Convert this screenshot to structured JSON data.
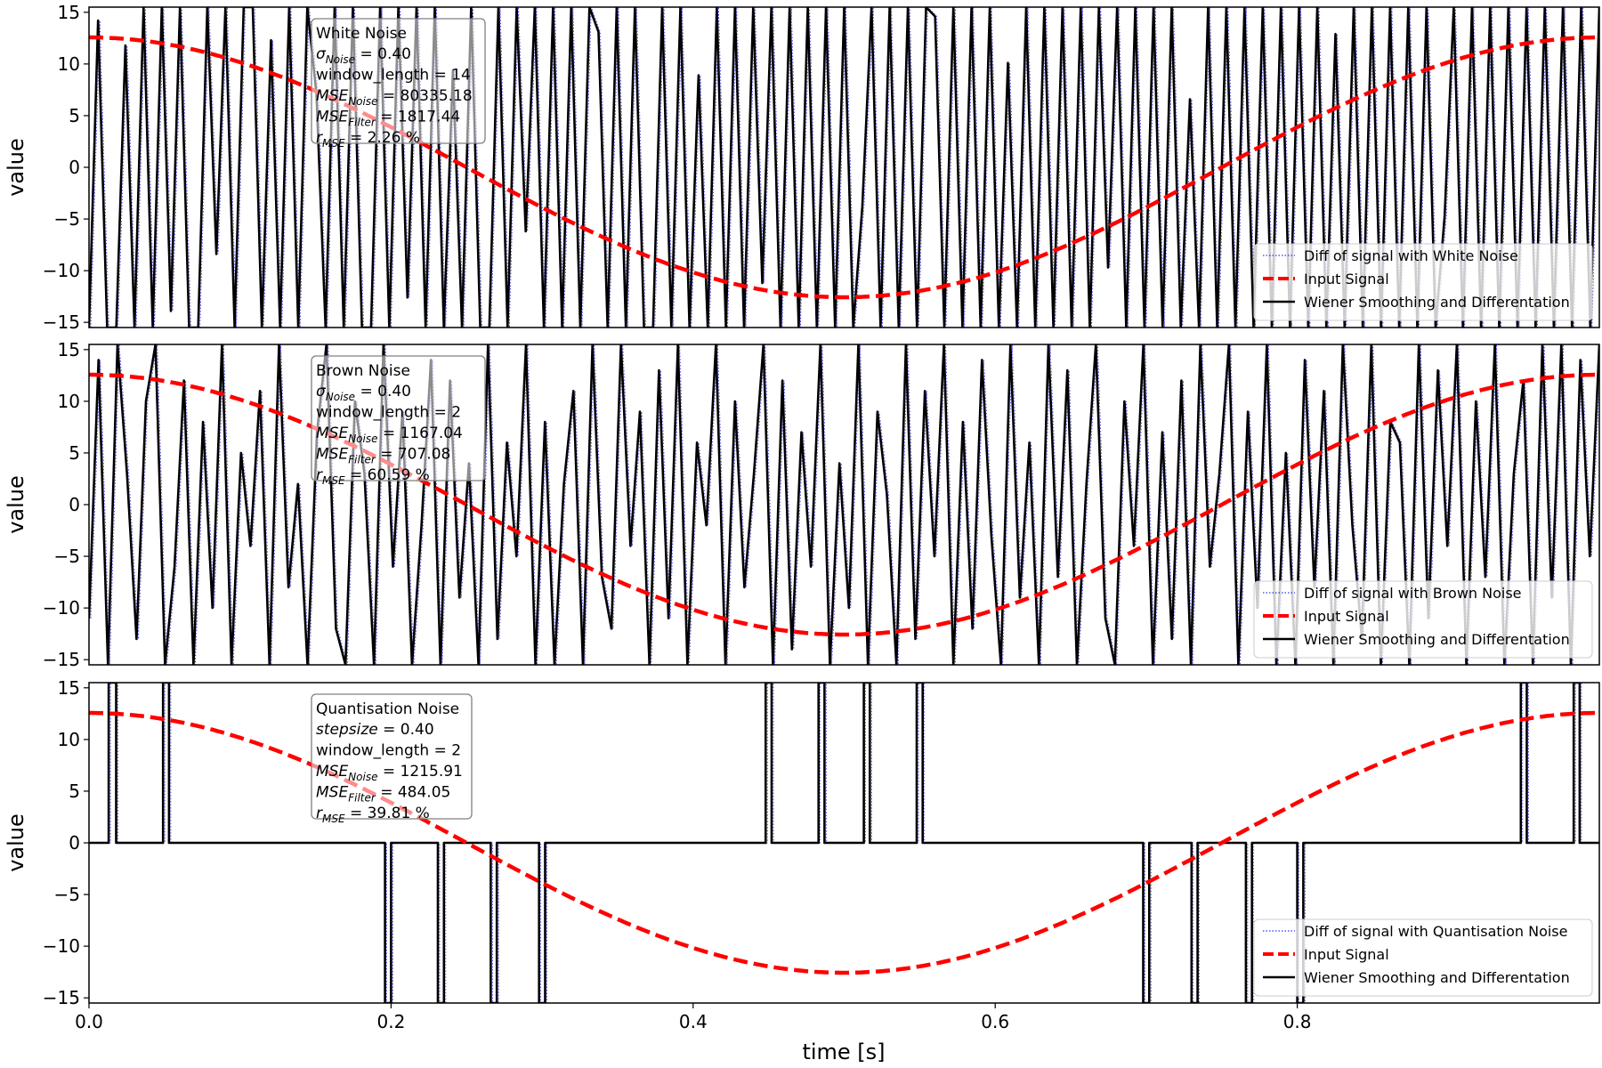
{
  "figure": {
    "xlabel": "time [s]",
    "x_ticks": [
      0.0,
      0.2,
      0.4,
      0.6,
      0.8
    ],
    "x_tick_labels": [
      "0.0",
      "0.2",
      "0.4",
      "0.6",
      "0.8"
    ],
    "xlim": [
      0.0,
      1.0
    ]
  },
  "chart_data": [
    {
      "type": "line",
      "ylabel": "value",
      "ylim": [
        -15.5,
        15.5
      ],
      "y_ticks": [
        -15,
        -10,
        -5,
        0,
        5,
        10,
        15
      ],
      "y_tick_labels": [
        "−15",
        "−10",
        "−5",
        "0",
        "5",
        "10",
        "15"
      ],
      "legend_placement": "lower-right",
      "info_box": {
        "title": "White Noise",
        "lines": [
          {
            "name": "σ",
            "sub": "Noise",
            "rest": " = 0.40"
          },
          {
            "name": "window_length",
            "sub": "",
            "rest": " = 14"
          },
          {
            "name": "MSE",
            "sub": "Noise",
            "rest": " = 80335.18"
          },
          {
            "name": "MSE",
            "sub": "Filter",
            "rest": " = 1817.44"
          },
          {
            "name": "r",
            "sub": "MSE",
            "rest": " = 2.26 %"
          }
        ]
      },
      "series": [
        {
          "name": "Diff of signal with White Noise",
          "color": "#0000ff",
          "style": "dotted"
        },
        {
          "name": "Input Signal",
          "color": "#ff0000",
          "style": "dashed",
          "function": "12.57*cos(2*pi*t)"
        },
        {
          "name": "Wiener Smoothing and Differentation",
          "color": "#000000",
          "style": "solid",
          "y": [
            -15.5,
            14.2,
            -15.5,
            -15.5,
            11.8,
            -15.5,
            15.5,
            -15.5,
            15.5,
            -13.9,
            15.5,
            -15.5,
            -15.5,
            15.5,
            -8.4,
            15.5,
            -15.5,
            15.5,
            15.5,
            -15.5,
            12.3,
            -15.5,
            15.5,
            -15.5,
            15.5,
            7.1,
            -15.5,
            15.5,
            -15.5,
            15.5,
            -15.5,
            -15.5,
            15.5,
            -15.5,
            15.5,
            -12.6,
            15.5,
            -15.5,
            15.5,
            -15.5,
            9.4,
            -15.5,
            15.5,
            -15.5,
            -15.5,
            15.5,
            -15.5,
            15.5,
            -6.2,
            15.5,
            -15.5,
            15.5,
            -15.5,
            15.5,
            -15.5,
            15.5,
            13.1,
            -15.5,
            15.5,
            -15.5,
            15.5,
            -15.5,
            -15.5,
            15.5,
            -15.5,
            15.5,
            -15.5,
            8.9,
            -15.5,
            15.5,
            -15.5,
            15.5,
            -15.5,
            15.5,
            -11.2,
            15.5,
            -15.5,
            15.5,
            -15.5,
            15.5,
            -15.5,
            15.5,
            -15.5,
            15.5,
            -15.5,
            -3.8,
            15.5,
            -15.5,
            15.5,
            -15.5,
            15.5,
            -15.5,
            15.5,
            14.6,
            -15.5,
            15.5,
            -15.5,
            15.5,
            -15.5,
            15.5,
            -15.5,
            10.1,
            -15.5,
            15.5,
            -15.5,
            15.5,
            -15.5,
            15.5,
            -15.5,
            15.5,
            -15.5,
            15.5,
            -9.7,
            15.5,
            -15.5,
            15.5,
            -15.5,
            15.5,
            -15.5,
            15.5,
            -15.5,
            6.6,
            -15.5,
            15.5,
            -15.5,
            15.5,
            -15.5,
            15.5,
            -15.5,
            15.5,
            -15.5,
            15.5,
            -15.5,
            15.5,
            -15.5,
            15.5,
            -15.5,
            12.9,
            -15.5,
            15.5,
            -15.5,
            15.5,
            -15.5,
            15.5,
            -15.5,
            15.5,
            -15.5,
            15.5,
            -15.5,
            -4.7,
            15.5,
            -15.5,
            15.5,
            -15.5,
            15.5,
            -15.5,
            15.5,
            -15.5,
            15.5,
            -15.5,
            15.5,
            -15.5,
            15.5,
            -15.5,
            15.5,
            -15.5,
            15.5
          ]
        }
      ]
    },
    {
      "type": "line",
      "ylabel": "value",
      "ylim": [
        -15.5,
        15.5
      ],
      "y_ticks": [
        -15,
        -10,
        -5,
        0,
        5,
        10,
        15
      ],
      "y_tick_labels": [
        "−15",
        "−10",
        "−5",
        "0",
        "5",
        "10",
        "15"
      ],
      "legend_placement": "lower-right",
      "info_box": {
        "title": "Brown Noise",
        "lines": [
          {
            "name": "σ",
            "sub": "Noise",
            "rest": " = 0.40"
          },
          {
            "name": "window_length",
            "sub": "",
            "rest": " = 2"
          },
          {
            "name": "MSE",
            "sub": "Noise",
            "rest": " = 1167.04"
          },
          {
            "name": "MSE",
            "sub": "Filter",
            "rest": " = 707.08"
          },
          {
            "name": "r",
            "sub": "MSE",
            "rest": " = 60.59 %"
          }
        ]
      },
      "series": [
        {
          "name": "Diff of signal with Brown Noise",
          "color": "#0000ff",
          "style": "dotted"
        },
        {
          "name": "Input Signal",
          "color": "#ff0000",
          "style": "dashed",
          "function": "12.57*cos(2*pi*t)"
        },
        {
          "name": "Wiener Smoothing and Differentation",
          "color": "#000000",
          "style": "solid",
          "y": [
            -11.0,
            14.0,
            -15.5,
            15.5,
            3.0,
            -13.0,
            10.0,
            15.5,
            -15.5,
            -6.0,
            12.0,
            -15.5,
            8.0,
            -10.0,
            15.5,
            -15.5,
            5.0,
            -4.0,
            11.0,
            -15.5,
            15.5,
            -8.0,
            2.0,
            -15.5,
            7.0,
            15.5,
            -12.0,
            -15.5,
            10.0,
            3.0,
            -15.5,
            15.5,
            -6.0,
            9.0,
            -15.5,
            -2.0,
            14.0,
            -15.5,
            12.0,
            -9.0,
            4.0,
            -15.5,
            15.5,
            -13.0,
            6.0,
            -5.0,
            15.5,
            -15.5,
            8.0,
            -15.5,
            2.0,
            11.0,
            -15.5,
            15.5,
            -7.0,
            -12.0,
            15.5,
            -4.0,
            9.0,
            -15.5,
            13.0,
            -11.0,
            15.5,
            -15.5,
            6.0,
            -2.0,
            15.5,
            -15.5,
            10.0,
            -8.0,
            3.0,
            15.5,
            -15.5,
            12.0,
            -14.0,
            7.0,
            -6.0,
            15.5,
            -15.5,
            4.0,
            -10.0,
            15.5,
            -15.5,
            9.0,
            1.0,
            -15.5,
            15.5,
            -13.0,
            11.0,
            -5.0,
            15.5,
            -15.5,
            8.0,
            -12.0,
            14.0,
            -3.0,
            -15.5,
            15.5,
            -9.0,
            6.0,
            -15.5,
            15.5,
            -7.0,
            13.0,
            -15.5,
            2.0,
            15.5,
            -11.0,
            -15.5,
            10.0,
            -4.0,
            15.5,
            -15.5,
            7.0,
            -13.0,
            12.0,
            -15.5,
            15.5,
            -6.0,
            3.0,
            15.5,
            -15.5,
            9.0,
            -10.0,
            15.5,
            -15.5,
            5.0,
            -15.5,
            14.0,
            -8.0,
            11.0,
            -15.5,
            15.5,
            -2.0,
            -13.0,
            15.5,
            -15.5,
            8.0,
            6.0,
            -15.5,
            15.5,
            -11.0,
            13.0,
            -4.0,
            15.5,
            -15.5,
            10.0,
            -7.0,
            15.5,
            -15.5,
            3.0,
            12.0,
            -15.5,
            15.5,
            -9.0,
            15.5,
            -15.5,
            14.0,
            -5.0,
            15.5
          ]
        }
      ]
    },
    {
      "type": "line",
      "ylabel": "value",
      "ylim": [
        -15.5,
        15.5
      ],
      "y_ticks": [
        -15,
        -10,
        -5,
        0,
        5,
        10,
        15
      ],
      "y_tick_labels": [
        "−15",
        "−10",
        "−5",
        "0",
        "5",
        "10",
        "15"
      ],
      "legend_placement": "lower-right",
      "info_box": {
        "title": "Quantisation Noise",
        "lines": [
          {
            "name": "stepsize",
            "sub": "",
            "rest": " = 0.40"
          },
          {
            "name": "window_length",
            "sub": "",
            "rest": " = 2"
          },
          {
            "name": "MSE",
            "sub": "Noise",
            "rest": " = 1215.91"
          },
          {
            "name": "MSE",
            "sub": "Filter",
            "rest": " = 484.05"
          },
          {
            "name": "r",
            "sub": "MSE",
            "rest": " = 39.81 %"
          }
        ]
      },
      "series": [
        {
          "name": "Diff of signal with Quantisation Noise",
          "color": "#0000ff",
          "style": "dotted"
        },
        {
          "name": "Input Signal",
          "color": "#ff0000",
          "style": "dashed",
          "function": "12.57*cos(2*pi*t)"
        },
        {
          "name": "Wiener Smoothing and Differentation",
          "color": "#000000",
          "style": "solid",
          "pulses": [
            {
              "t0": 0.013,
              "t1": 0.018,
              "value": 15.5
            },
            {
              "t0": 0.049,
              "t1": 0.053,
              "value": 15.5
            },
            {
              "t0": 0.196,
              "t1": 0.2,
              "value": -15.5
            },
            {
              "t0": 0.231,
              "t1": 0.235,
              "value": -15.5
            },
            {
              "t0": 0.266,
              "t1": 0.27,
              "value": -15.5
            },
            {
              "t0": 0.298,
              "t1": 0.302,
              "value": -15.5
            },
            {
              "t0": 0.448,
              "t1": 0.452,
              "value": 15.5
            },
            {
              "t0": 0.483,
              "t1": 0.487,
              "value": 15.5
            },
            {
              "t0": 0.513,
              "t1": 0.517,
              "value": 15.5
            },
            {
              "t0": 0.548,
              "t1": 0.552,
              "value": 15.5
            },
            {
              "t0": 0.698,
              "t1": 0.702,
              "value": -15.5
            },
            {
              "t0": 0.73,
              "t1": 0.734,
              "value": -15.5
            },
            {
              "t0": 0.766,
              "t1": 0.77,
              "value": -15.5
            },
            {
              "t0": 0.8,
              "t1": 0.804,
              "value": -15.5
            },
            {
              "t0": 0.948,
              "t1": 0.952,
              "value": 15.5
            },
            {
              "t0": 0.983,
              "t1": 0.987,
              "value": 15.5
            }
          ]
        }
      ]
    }
  ]
}
